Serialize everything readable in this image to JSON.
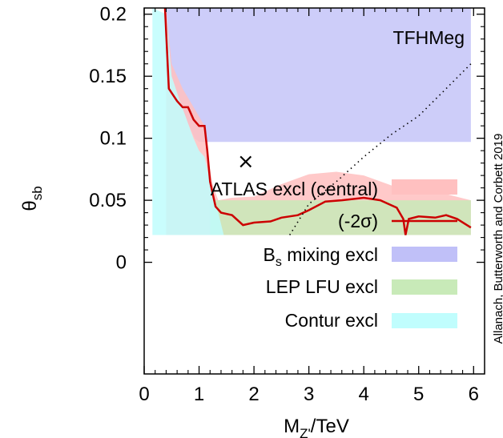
{
  "chart_data": {
    "type": "area",
    "xlabel_main": "M",
    "xlabel_sub": "Z'",
    "xlabel_unit": "/TeV",
    "ylabel_main": "θ",
    "ylabel_sub": "sb",
    "xlim": [
      0,
      6.2
    ],
    "ylim": [
      -0.09,
      0.205
    ],
    "x_ticks": [
      0,
      1,
      2,
      3,
      4,
      5,
      6
    ],
    "y_ticks": [
      {
        "value": 0,
        "label": "0"
      },
      {
        "value": 0.05,
        "label": "0.05"
      },
      {
        "value": 0.1,
        "label": "0.1"
      },
      {
        "value": 0.15,
        "label": "0.15"
      },
      {
        "value": 0.2,
        "label": "0.2"
      }
    ],
    "annotation": "TFHMeg",
    "credit": "Allanach, Butterworth and Corbett 2019",
    "marker": {
      "symbol": "×",
      "x": 1.85,
      "y": 0.081
    },
    "series": [
      {
        "name": "ATLAS excl (central)",
        "kind": "band",
        "color": "#ffc0c0",
        "upper": [
          [
            0.4,
            0.205
          ],
          [
            0.5,
            0.16
          ],
          [
            0.7,
            0.14
          ],
          [
            0.9,
            0.125
          ],
          [
            1.1,
            0.11
          ],
          [
            1.18,
            0.08
          ],
          [
            1.25,
            0.062
          ],
          [
            1.35,
            0.05
          ],
          [
            1.6,
            0.052
          ],
          [
            2.0,
            0.053
          ],
          [
            2.5,
            0.063
          ],
          [
            3.0,
            0.071
          ],
          [
            3.5,
            0.073
          ],
          [
            4.0,
            0.07
          ],
          [
            4.5,
            0.062
          ],
          [
            5.0,
            0.057
          ],
          [
            5.5,
            0.055
          ],
          [
            5.95,
            0.05
          ]
        ],
        "lower": 0.022
      },
      {
        "name": "(-2σ)",
        "kind": "line",
        "color": "#cc0000",
        "points": [
          [
            0.38,
            0.205
          ],
          [
            0.45,
            0.14
          ],
          [
            0.6,
            0.13
          ],
          [
            0.7,
            0.125
          ],
          [
            0.8,
            0.125
          ],
          [
            0.9,
            0.115
          ],
          [
            1.0,
            0.11
          ],
          [
            1.1,
            0.11
          ],
          [
            1.15,
            0.09
          ],
          [
            1.2,
            0.065
          ],
          [
            1.3,
            0.045
          ],
          [
            1.4,
            0.04
          ],
          [
            1.6,
            0.038
          ],
          [
            1.8,
            0.03
          ],
          [
            2.0,
            0.032
          ],
          [
            2.3,
            0.033
          ],
          [
            2.5,
            0.036
          ],
          [
            2.8,
            0.038
          ],
          [
            3.0,
            0.042
          ],
          [
            3.3,
            0.049
          ],
          [
            3.6,
            0.05
          ],
          [
            4.0,
            0.052
          ],
          [
            4.3,
            0.05
          ],
          [
            4.6,
            0.044
          ],
          [
            4.72,
            0.035
          ],
          [
            4.76,
            0.022
          ],
          [
            4.82,
            0.035
          ],
          [
            5.0,
            0.037
          ],
          [
            5.3,
            0.036
          ],
          [
            5.5,
            0.038
          ],
          [
            5.7,
            0.035
          ],
          [
            5.95,
            0.028
          ]
        ]
      },
      {
        "name": "B",
        "name_sub": "s",
        "name_rest": " mixing excl",
        "kind": "band",
        "color": "#c0c0f8",
        "upper": [
          [
            0.4,
            0.205
          ],
          [
            5.95,
            0.205
          ]
        ],
        "lower_points": [
          [
            0.4,
            0.2
          ],
          [
            0.5,
            0.15
          ],
          [
            0.65,
            0.13
          ],
          [
            0.8,
            0.112
          ],
          [
            0.92,
            0.1
          ],
          [
            1.0,
            0.097
          ],
          [
            5.95,
            0.097
          ]
        ]
      },
      {
        "name": "LEP LFU excl",
        "kind": "band",
        "color": "#c8eab8",
        "upper": [
          [
            1.2,
            0.05
          ],
          [
            5.95,
            0.05
          ]
        ],
        "lower": 0.022
      },
      {
        "name": "Contur excl",
        "kind": "band",
        "color": "#c0fdfd",
        "upper": [
          [
            0.15,
            0.205
          ],
          [
            0.4,
            0.2
          ],
          [
            0.5,
            0.15
          ],
          [
            0.65,
            0.13
          ],
          [
            0.8,
            0.112
          ],
          [
            0.9,
            0.1
          ],
          [
            1.0,
            0.09
          ],
          [
            1.1,
            0.085
          ],
          [
            1.2,
            0.065
          ],
          [
            1.25,
            0.052
          ],
          [
            1.35,
            0.04
          ],
          [
            1.45,
            0.022
          ]
        ],
        "lower": 0.022
      },
      {
        "name": "",
        "kind": "dotted",
        "color": "#000000",
        "points": [
          [
            2.65,
            0.022
          ],
          [
            3.0,
            0.047
          ],
          [
            3.5,
            0.065
          ],
          [
            4.0,
            0.085
          ],
          [
            4.5,
            0.103
          ],
          [
            5.0,
            0.118
          ],
          [
            5.5,
            0.14
          ],
          [
            5.95,
            0.16
          ]
        ]
      }
    ],
    "legend_position": "inside-bottom-right"
  }
}
